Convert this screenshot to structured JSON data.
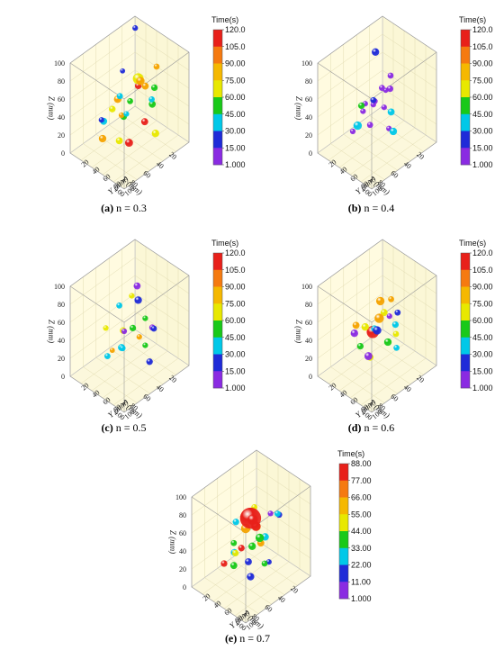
{
  "chart_data": [
    {
      "type": "scatter3d",
      "caption_letter": "(a)",
      "caption_text": " n = 0.3",
      "axes": {
        "x_label": "X (mm)",
        "y_label": "Y (mm)",
        "z_label": "Z (mm)",
        "x_ticks": [
          "20",
          "40",
          "60",
          "80",
          "100"
        ],
        "y_ticks": [
          "20",
          "40",
          "60",
          "80",
          "100"
        ],
        "z_ticks": [
          "0",
          "20",
          "40",
          "60",
          "80",
          "100"
        ],
        "xlim": [
          0,
          100
        ],
        "ylim": [
          0,
          100
        ],
        "zlim": [
          0,
          100
        ]
      },
      "colorbar": {
        "title": "Time(s)",
        "ticks": [
          "120.0",
          "105.0",
          "90.00",
          "75.00",
          "60.00",
          "45.00",
          "30.00",
          "15.00",
          "1.000"
        ],
        "range": [
          1,
          120
        ]
      },
      "points": [
        [
          8,
          10,
          95,
          30,
          1.2
        ],
        [
          50,
          70,
          82,
          100,
          1.8
        ],
        [
          45,
          60,
          78,
          85,
          2.3
        ],
        [
          30,
          55,
          60,
          95,
          1.5
        ],
        [
          60,
          40,
          55,
          90,
          1.6
        ],
        [
          70,
          75,
          72,
          60,
          1.3
        ],
        [
          20,
          30,
          45,
          110,
          1.4
        ],
        [
          80,
          85,
          35,
          115,
          1.7
        ],
        [
          65,
          20,
          25,
          50,
          1.5
        ],
        [
          35,
          80,
          20,
          70,
          1.6
        ],
        [
          55,
          50,
          40,
          40,
          1.2
        ],
        [
          85,
          60,
          65,
          80,
          1.4
        ],
        [
          25,
          70,
          85,
          95,
          1.3
        ],
        [
          15,
          50,
          30,
          55,
          1.5
        ],
        [
          75,
          30,
          15,
          100,
          1.6
        ],
        [
          40,
          25,
          70,
          20,
          1.1
        ],
        [
          90,
          80,
          90,
          45,
          1.3
        ],
        [
          60,
          90,
          50,
          105,
          1.5
        ],
        [
          30,
          15,
          10,
          65,
          1.4
        ],
        [
          50,
          35,
          30,
          95,
          1.2
        ],
        [
          70,
          55,
          20,
          75,
          1.5
        ],
        [
          45,
          85,
          65,
          35,
          1.3
        ],
        [
          20,
          60,
          55,
          60,
          1.4
        ],
        [
          85,
          40,
          45,
          25,
          1.2
        ]
      ]
    },
    {
      "type": "scatter3d",
      "caption_letter": "(b)",
      "caption_text": " n = 0.4",
      "axes": {
        "x_label": "X (mm)",
        "y_label": "Y (mm)",
        "z_label": "Z (mm)",
        "x_ticks": [
          "20",
          "40",
          "60",
          "80",
          "100"
        ],
        "y_ticks": [
          "20",
          "40",
          "60",
          "80",
          "100"
        ],
        "z_ticks": [
          "0",
          "20",
          "40",
          "60",
          "80",
          "100"
        ],
        "xlim": [
          0,
          100
        ],
        "ylim": [
          0,
          100
        ],
        "zlim": [
          0,
          100
        ]
      },
      "colorbar": {
        "title": "Time(s)",
        "ticks": [
          "120.0",
          "105.0",
          "90.00",
          "75.00",
          "60.00",
          "45.00",
          "30.00",
          "15.00",
          "1.000"
        ],
        "range": [
          1,
          120
        ]
      },
      "points": [
        [
          40,
          35,
          95,
          25,
          1.6
        ],
        [
          55,
          65,
          75,
          10,
          1.3
        ],
        [
          70,
          70,
          70,
          8,
          1.2
        ],
        [
          30,
          50,
          55,
          5,
          1.4
        ],
        [
          60,
          40,
          50,
          12,
          1.2
        ],
        [
          45,
          70,
          45,
          40,
          1.5
        ],
        [
          65,
          55,
          35,
          15,
          1.3
        ],
        [
          35,
          25,
          30,
          8,
          1.2
        ],
        [
          50,
          80,
          30,
          50,
          1.6
        ],
        [
          80,
          60,
          60,
          6,
          1.2
        ],
        [
          25,
          45,
          65,
          10,
          1.3
        ],
        [
          75,
          35,
          25,
          9,
          1.2
        ],
        [
          55,
          20,
          15,
          45,
          1.8
        ],
        [
          20,
          30,
          40,
          7,
          1.1
        ],
        [
          85,
          85,
          85,
          20,
          1.3
        ],
        [
          40,
          60,
          20,
          5,
          1.2
        ],
        [
          70,
          45,
          55,
          60,
          1.4
        ],
        [
          60,
          75,
          60,
          11,
          1.2
        ]
      ]
    },
    {
      "type": "scatter3d",
      "caption_letter": "(c)",
      "caption_text": " n = 0.5",
      "axes": {
        "x_label": "X (mm)",
        "y_label": "Y (mm)",
        "z_label": "Z (mm)",
        "x_ticks": [
          "20",
          "40",
          "60",
          "80",
          "100"
        ],
        "y_ticks": [
          "20",
          "40",
          "60",
          "80",
          "100"
        ],
        "z_ticks": [
          "0",
          "20",
          "40",
          "60",
          "80",
          "100"
        ],
        "xlim": [
          0,
          100
        ],
        "ylim": [
          0,
          100
        ],
        "zlim": [
          0,
          100
        ]
      },
      "colorbar": {
        "title": "Time(s)",
        "ticks": [
          "120.0",
          "105.0",
          "90.00",
          "75.00",
          "60.00",
          "45.00",
          "30.00",
          "15.00",
          "1.000"
        ],
        "range": [
          1,
          120
        ]
      },
      "points": [
        [
          30,
          40,
          80,
          5,
          1.5
        ],
        [
          55,
          60,
          90,
          70,
          1.2
        ],
        [
          20,
          30,
          55,
          25,
          1.6
        ],
        [
          45,
          50,
          45,
          60,
          1.4
        ],
        [
          65,
          55,
          35,
          40,
          1.3
        ],
        [
          35,
          20,
          25,
          85,
          1.4
        ],
        [
          75,
          70,
          65,
          10,
          1.2
        ],
        [
          50,
          35,
          20,
          50,
          1.5
        ],
        [
          25,
          65,
          40,
          30,
          1.3
        ],
        [
          60,
          80,
          55,
          90,
          1.2
        ],
        [
          80,
          45,
          30,
          45,
          1.3
        ],
        [
          40,
          75,
          15,
          20,
          1.4
        ],
        [
          15,
          50,
          30,
          15,
          1.3
        ],
        [
          70,
          30,
          50,
          75,
          1.2
        ],
        [
          55,
          85,
          75,
          55,
          1.2
        ],
        [
          85,
          60,
          45,
          100,
          1.1
        ],
        [
          45,
          25,
          60,
          35,
          1.3
        ],
        [
          30,
          55,
          20,
          65,
          1.2
        ]
      ]
    },
    {
      "type": "scatter3d",
      "caption_letter": "(d)",
      "caption_text": " n = 0.6",
      "axes": {
        "x_label": "X (mm)",
        "y_label": "Y (mm)",
        "z_label": "Z (mm)",
        "x_ticks": [
          "20",
          "40",
          "60",
          "80",
          "100"
        ],
        "y_ticks": [
          "20",
          "40",
          "60",
          "80",
          "100"
        ],
        "z_ticks": [
          "0",
          "20",
          "40",
          "60",
          "80",
          "100"
        ],
        "xlim": [
          0,
          100
        ],
        "ylim": [
          0,
          100
        ],
        "zlim": [
          0,
          100
        ]
      },
      "colorbar": {
        "title": "Time(s)",
        "ticks": [
          "120.0",
          "105.0",
          "90.00",
          "75.00",
          "60.00",
          "45.00",
          "30.00",
          "15.00",
          "1.000"
        ],
        "range": [
          1,
          120
        ]
      },
      "points": [
        [
          45,
          50,
          75,
          90,
          1.8
        ],
        [
          55,
          60,
          65,
          100,
          2.0
        ],
        [
          35,
          45,
          55,
          70,
          1.5
        ],
        [
          60,
          40,
          50,
          85,
          1.6
        ],
        [
          40,
          30,
          30,
          115,
          2.6
        ],
        [
          75,
          80,
          70,
          20,
          1.8
        ],
        [
          50,
          70,
          40,
          60,
          1.6
        ],
        [
          30,
          60,
          45,
          45,
          1.4
        ],
        [
          65,
          55,
          25,
          80,
          1.5
        ],
        [
          80,
          70,
          40,
          10,
          1.7
        ],
        [
          20,
          40,
          60,
          100,
          1.3
        ],
        [
          55,
          25,
          20,
          55,
          1.4
        ],
        [
          70,
          35,
          55,
          95,
          1.5
        ],
        [
          45,
          80,
          35,
          40,
          1.3
        ],
        [
          85,
          50,
          60,
          15,
          1.6
        ],
        [
          25,
          55,
          30,
          75,
          1.3
        ],
        [
          60,
          85,
          80,
          5,
          1.2
        ],
        [
          50,
          45,
          45,
          50,
          1.4
        ],
        [
          35,
          70,
          65,
          30,
          1.3
        ]
      ]
    },
    {
      "type": "scatter3d",
      "caption_letter": "(e)",
      "caption_text": " n = 0.7",
      "axes": {
        "x_label": "X (mm)",
        "y_label": "Y (mm)",
        "z_label": "Z (mm)",
        "x_ticks": [
          "20",
          "40",
          "60",
          "80",
          "100"
        ],
        "y_ticks": [
          "20",
          "40",
          "60",
          "80",
          "100"
        ],
        "z_ticks": [
          "0",
          "20",
          "40",
          "60",
          "80",
          "100"
        ],
        "xlim": [
          0,
          100
        ],
        "ylim": [
          0,
          100
        ],
        "zlim": [
          0,
          100
        ]
      },
      "colorbar": {
        "title": "Time(s)",
        "ticks": [
          "88.00",
          "77.00",
          "66.00",
          "55.00",
          "44.00",
          "33.00",
          "22.00",
          "11.00",
          "1.000"
        ],
        "range": [
          1,
          88
        ]
      },
      "points": [
        [
          55,
          55,
          75,
          85,
          4.5
        ],
        [
          60,
          65,
          80,
          80,
          2.2
        ],
        [
          50,
          40,
          55,
          70,
          2.0
        ],
        [
          45,
          60,
          50,
          40,
          1.8
        ],
        [
          30,
          35,
          45,
          80,
          2.0
        ],
        [
          25,
          30,
          40,
          75,
          1.8
        ],
        [
          35,
          50,
          35,
          65,
          1.5
        ],
        [
          20,
          40,
          30,
          30,
          1.6
        ],
        [
          65,
          70,
          55,
          45,
          1.6
        ],
        [
          75,
          75,
          45,
          25,
          1.5
        ],
        [
          80,
          85,
          35,
          15,
          1.6
        ],
        [
          55,
          25,
          25,
          35,
          1.5
        ],
        [
          40,
          20,
          20,
          85,
          1.4
        ],
        [
          70,
          45,
          40,
          55,
          1.4
        ],
        [
          15,
          60,
          60,
          20,
          1.3
        ],
        [
          85,
          60,
          65,
          40,
          1.3
        ],
        [
          30,
          75,
          75,
          30,
          1.3
        ],
        [
          60,
          30,
          15,
          40,
          1.5
        ],
        [
          45,
          80,
          85,
          10,
          1.2
        ],
        [
          75,
          30,
          25,
          80,
          1.4
        ],
        [
          20,
          20,
          55,
          60,
          1.3
        ],
        [
          50,
          75,
          30,
          50,
          1.3
        ],
        [
          65,
          40,
          70,
          35,
          1.4
        ],
        [
          35,
          65,
          20,
          15,
          1.2
        ]
      ]
    }
  ]
}
